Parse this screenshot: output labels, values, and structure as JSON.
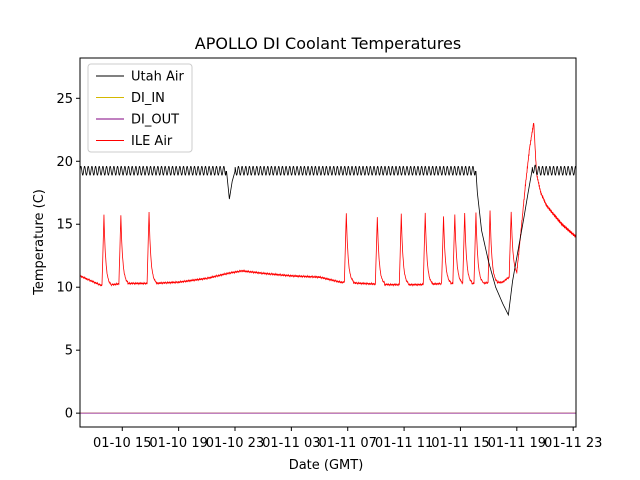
{
  "chart_data": {
    "type": "line",
    "title": "APOLLO DI Coolant Temperatures",
    "xlabel": "Date (GMT)",
    "ylabel": "Temperature (C)",
    "x_units": "hours since 01-10 12:00 GMT",
    "xlim": [
      0,
      35.2
    ],
    "ylim": [
      -1.1,
      28.2
    ],
    "x_ticks": [
      {
        "value": 3,
        "label": "01-10 15"
      },
      {
        "value": 7,
        "label": "01-10 19"
      },
      {
        "value": 11,
        "label": "01-10 23"
      },
      {
        "value": 15,
        "label": "01-11 03"
      },
      {
        "value": 19,
        "label": "01-11 07"
      },
      {
        "value": 23,
        "label": "01-11 11"
      },
      {
        "value": 27,
        "label": "01-11 15"
      },
      {
        "value": 31,
        "label": "01-11 19"
      },
      {
        "value": 35,
        "label": "01-11 23"
      }
    ],
    "y_ticks": [
      {
        "value": 0,
        "label": "0"
      },
      {
        "value": 5,
        "label": "5"
      },
      {
        "value": 10,
        "label": "10"
      },
      {
        "value": 15,
        "label": "15"
      },
      {
        "value": 20,
        "label": "20"
      },
      {
        "value": 25,
        "label": "25"
      }
    ],
    "legend_position": "top-left",
    "series": [
      {
        "name": "Utah Air",
        "color": "#000000",
        "oscillation": {
          "low": 18.9,
          "high": 19.6,
          "period_hours": 0.26
        },
        "points": [
          [
            0,
            19.2
          ],
          [
            10.4,
            19.2
          ],
          [
            10.6,
            17.0
          ],
          [
            10.8,
            18.4
          ],
          [
            11.0,
            19.2
          ],
          [
            28.1,
            19.2
          ],
          [
            28.2,
            17.5
          ],
          [
            28.5,
            14.5
          ],
          [
            29.0,
            12.0
          ],
          [
            29.5,
            10.0
          ],
          [
            30.0,
            8.7
          ],
          [
            30.4,
            7.8
          ],
          [
            30.7,
            10.5
          ],
          [
            31.1,
            13.0
          ],
          [
            31.5,
            15.5
          ],
          [
            31.8,
            17.5
          ],
          [
            32.1,
            19.4
          ],
          [
            32.5,
            19.2
          ],
          [
            35.2,
            19.2
          ]
        ]
      },
      {
        "name": "DI_IN",
        "color": "#d4b800",
        "points": [
          [
            0,
            0
          ],
          [
            35.2,
            0
          ]
        ]
      },
      {
        "name": "DI_OUT",
        "color": "#800080",
        "points": [
          [
            0,
            0
          ],
          [
            35.2,
            0
          ]
        ]
      },
      {
        "name": "ILE Air",
        "color": "#ff0000",
        "baseline": [
          [
            0,
            10.9
          ],
          [
            1.6,
            10.1
          ],
          [
            3.0,
            10.3
          ],
          [
            5.2,
            10.3
          ],
          [
            7.0,
            10.4
          ],
          [
            9.0,
            10.7
          ],
          [
            10.5,
            11.1
          ],
          [
            11.5,
            11.3
          ],
          [
            13.0,
            11.1
          ],
          [
            15.0,
            10.9
          ],
          [
            17.0,
            10.8
          ],
          [
            18.5,
            10.4
          ],
          [
            20.0,
            10.3
          ],
          [
            22.0,
            10.2
          ],
          [
            24.0,
            10.2
          ],
          [
            26.0,
            10.3
          ],
          [
            28.0,
            10.3
          ],
          [
            30.0,
            10.4
          ],
          [
            31.0,
            11.3
          ]
        ],
        "spikes": [
          [
            1.7,
            15.7
          ],
          [
            2.9,
            15.7
          ],
          [
            4.9,
            16.0
          ],
          [
            18.9,
            15.9
          ],
          [
            21.1,
            15.6
          ],
          [
            22.8,
            15.8
          ],
          [
            24.5,
            15.9
          ],
          [
            25.8,
            15.6
          ],
          [
            26.6,
            15.8
          ],
          [
            27.3,
            15.9
          ],
          [
            28.1,
            15.9
          ],
          [
            29.1,
            16.1
          ],
          [
            30.6,
            16.0
          ]
        ],
        "tail": [
          [
            31.0,
            11.2
          ],
          [
            31.3,
            14.5
          ],
          [
            31.6,
            18.0
          ],
          [
            31.9,
            21.0
          ],
          [
            32.2,
            23.1
          ],
          [
            32.4,
            19.0
          ],
          [
            32.7,
            17.5
          ],
          [
            33.1,
            16.5
          ],
          [
            33.6,
            15.8
          ],
          [
            34.2,
            15.0
          ],
          [
            34.7,
            14.5
          ],
          [
            35.2,
            14.0
          ]
        ]
      }
    ]
  }
}
